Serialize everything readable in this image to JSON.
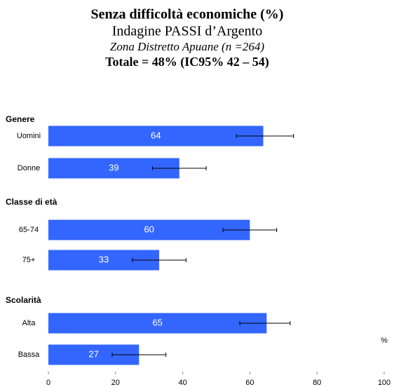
{
  "chart_data": {
    "type": "bar",
    "orientation": "horizontal",
    "title": "Senza difficoltà economiche (%)",
    "subtitle": "Indagine PASSI d’Argento",
    "subtitle2": "Zona Distretto Apuane (n =264)",
    "subtitle3": "Totale = 48% (IC95% 42 – 54)",
    "x_label": "%",
    "color": "#3366ff",
    "xlim": [
      0,
      100
    ],
    "xticks": [
      0,
      20,
      40,
      60,
      80,
      100
    ],
    "groups": [
      {
        "name": "Genere",
        "categories": [
          "Uomini",
          "Donne"
        ],
        "values": [
          64,
          39
        ],
        "ci": [
          [
            56,
            73
          ],
          [
            31,
            47
          ]
        ]
      },
      {
        "name": "Classe di età",
        "categories": [
          "65-74",
          "75+"
        ],
        "values": [
          60,
          33
        ],
        "ci": [
          [
            52,
            68
          ],
          [
            25,
            41
          ]
        ]
      },
      {
        "name": "Scolarità",
        "categories": [
          "Alta",
          "Bassa"
        ],
        "values": [
          65,
          27
        ],
        "ci": [
          [
            57,
            72
          ],
          [
            19,
            35
          ]
        ]
      }
    ]
  }
}
